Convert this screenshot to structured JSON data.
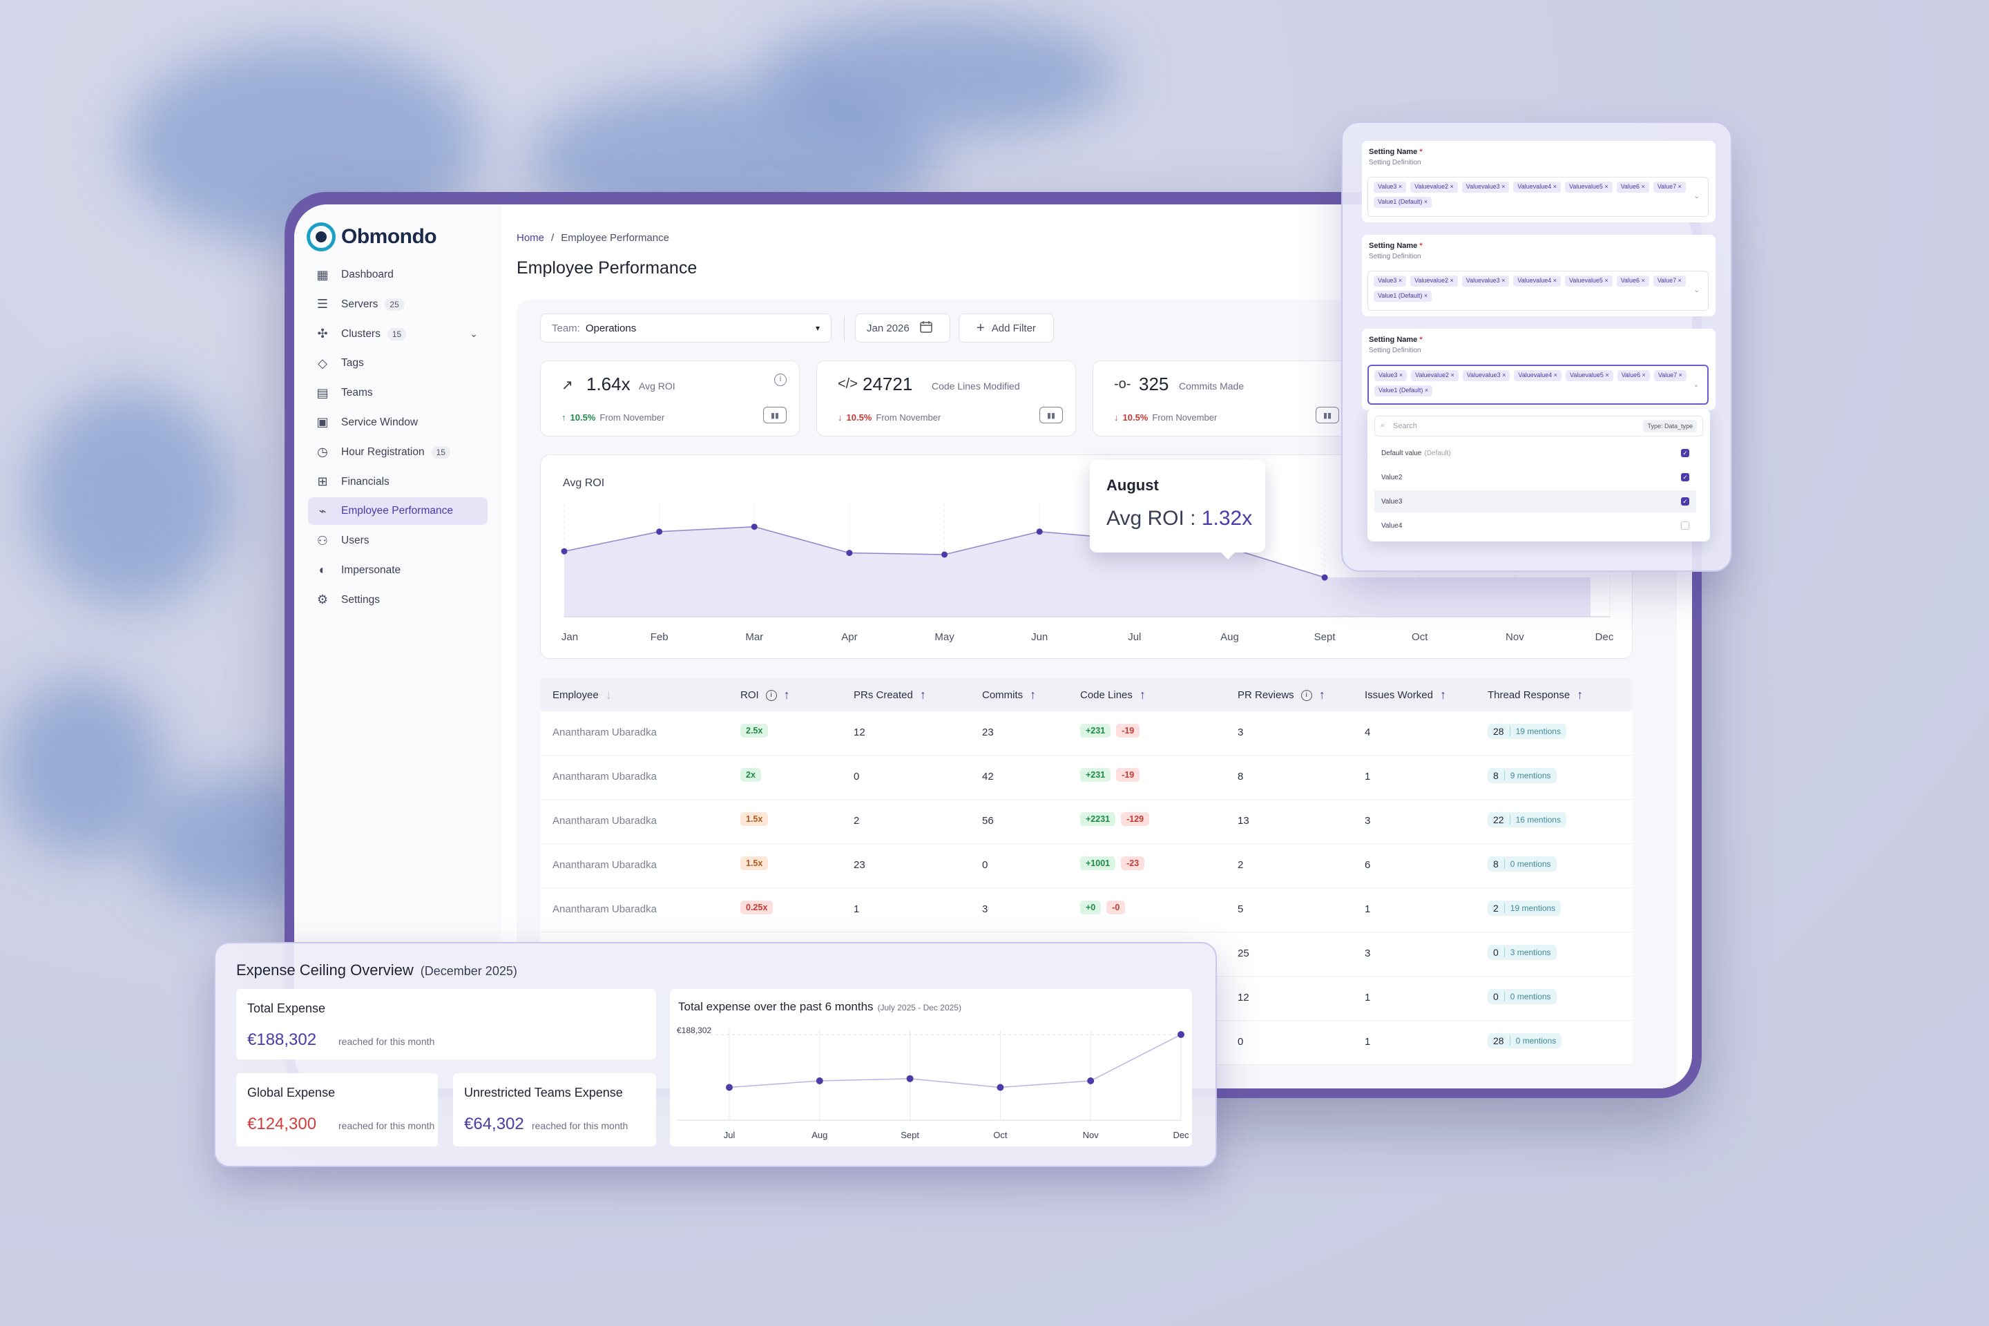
{
  "brand": "Obmondo",
  "sidebar": {
    "items": [
      {
        "label": "Dashboard",
        "icon": "dashboard-icon",
        "badge": ""
      },
      {
        "label": "Servers",
        "icon": "server-icon",
        "badge": "25"
      },
      {
        "label": "Clusters",
        "icon": "cluster-icon",
        "badge": "15"
      },
      {
        "label": "Tags",
        "icon": "tag-icon",
        "badge": ""
      },
      {
        "label": "Teams",
        "icon": "team-icon",
        "badge": ""
      },
      {
        "label": "Service Window",
        "icon": "calendar-icon",
        "badge": ""
      },
      {
        "label": "Hour Registration",
        "icon": "clock-icon",
        "badge": "15"
      },
      {
        "label": "Financials",
        "icon": "financials-icon",
        "badge": ""
      },
      {
        "label": "Employee Performance",
        "icon": "chart-line-icon",
        "badge": ""
      },
      {
        "label": "Users",
        "icon": "users-icon",
        "badge": ""
      },
      {
        "label": "Impersonate",
        "icon": "mask-icon",
        "badge": ""
      },
      {
        "label": "Settings",
        "icon": "gear-icon",
        "badge": ""
      }
    ],
    "active_index": 8
  },
  "breadcrumb": {
    "home": "Home",
    "sep": "/",
    "current": "Employee Performance"
  },
  "page_title": "Employee Performance",
  "filters": {
    "team_label": "Team:",
    "team_value": "Operations",
    "date": "Jan 2026",
    "add_filter": "Add Filter"
  },
  "kpis": [
    {
      "value": "1.64x",
      "caption": "Avg ROI",
      "change": "10.5%",
      "direction": "up",
      "since": "From November"
    },
    {
      "value": "24721",
      "caption": "Code Lines Modified",
      "change": "10.5%",
      "direction": "down",
      "since": "From November"
    },
    {
      "value": "325",
      "caption": "Commits Made",
      "change": "10.5%",
      "direction": "down",
      "since": "From November"
    }
  ],
  "chart_data": {
    "type": "area",
    "title": "Avg ROI",
    "categories": [
      "Jan",
      "Feb",
      "Mar",
      "Apr",
      "May",
      "Jun",
      "Jul",
      "Aug",
      "Sept",
      "Oct",
      "Nov",
      "Dec"
    ],
    "values": [
      1.3,
      1.42,
      1.45,
      1.29,
      1.28,
      1.42,
      null,
      1.32,
      1.14,
      null,
      null,
      null
    ],
    "colors": {
      "line": "#8f86c9",
      "fill": "#e9e6f7",
      "point": "#4b3aa7"
    }
  },
  "tooltip": {
    "month": "August",
    "label": "Avg ROI :",
    "value": "1.32x"
  },
  "table": {
    "headers": [
      "Employee",
      "ROI",
      "PRs Created",
      "Commits",
      "Code Lines",
      "PR Reviews",
      "Issues Worked",
      "Thread Response"
    ],
    "rows": [
      {
        "employee": "Anantharam Ubaradka",
        "roi": "2.5x",
        "roi_tone": "green",
        "prs": "12",
        "commits": "23",
        "add": "+231",
        "del": "-19",
        "reviews": "3",
        "issues": "4",
        "thread": "28",
        "mentions": "19 mentions"
      },
      {
        "employee": "Anantharam Ubaradka",
        "roi": "2x",
        "roi_tone": "green",
        "prs": "0",
        "commits": "42",
        "add": "+231",
        "del": "-19",
        "reviews": "8",
        "issues": "1",
        "thread": "8",
        "mentions": "9 mentions"
      },
      {
        "employee": "Anantharam Ubaradka",
        "roi": "1.5x",
        "roi_tone": "orange",
        "prs": "2",
        "commits": "56",
        "add": "+2231",
        "del": "-129",
        "reviews": "13",
        "issues": "3",
        "thread": "22",
        "mentions": "16 mentions"
      },
      {
        "employee": "Anantharam Ubaradka",
        "roi": "1.5x",
        "roi_tone": "orange",
        "prs": "23",
        "commits": "0",
        "add": "+1001",
        "del": "-23",
        "reviews": "2",
        "issues": "6",
        "thread": "8",
        "mentions": "0 mentions"
      },
      {
        "employee": "Anantharam Ubaradka",
        "roi": "0.25x",
        "roi_tone": "red",
        "prs": "1",
        "commits": "3",
        "add": "+0",
        "del": "-0",
        "reviews": "5",
        "issues": "1",
        "thread": "2",
        "mentions": "19 mentions"
      },
      {
        "employee": "",
        "roi": "",
        "roi_tone": "",
        "prs": "",
        "commits": "",
        "add": "",
        "del": "",
        "reviews": "25",
        "issues": "3",
        "thread": "0",
        "mentions": "3 mentions"
      },
      {
        "employee": "",
        "roi": "",
        "roi_tone": "",
        "prs": "",
        "commits": "",
        "add": "",
        "del": "",
        "reviews": "12",
        "issues": "1",
        "thread": "0",
        "mentions": "0 mentions"
      },
      {
        "employee": "",
        "roi": "",
        "roi_tone": "",
        "prs": "",
        "commits": "",
        "add": "",
        "del": "",
        "reviews": "0",
        "issues": "1",
        "thread": "28",
        "mentions": "0 mentions"
      }
    ]
  },
  "settings_panel": {
    "cards": [
      {
        "name": "Setting Name",
        "definition": "Setting Definition"
      },
      {
        "name": "Setting Name",
        "definition": "Setting Definition"
      },
      {
        "name": "Setting Name",
        "definition": "Setting Definition"
      }
    ],
    "tags": [
      "Value3",
      "Valuevalue2",
      "Valuevalue3",
      "Valuevalue4",
      "Valuevalue5",
      "Value6",
      "Value7",
      "Value1 (Default)"
    ],
    "search_placeholder": "Search",
    "type_chip": "Type: Data_type",
    "options": [
      {
        "label": "Default value",
        "hint": "(Default)",
        "checked": true
      },
      {
        "label": "Value2",
        "hint": "",
        "checked": true
      },
      {
        "label": "Value3",
        "hint": "",
        "checked": true
      },
      {
        "label": "Value4",
        "hint": "",
        "checked": false
      }
    ]
  },
  "expense": {
    "title": "Expense Ceiling Overview",
    "period": "(December 2025)",
    "total": {
      "label": "Total Expense",
      "value": "€188,302",
      "sub": "reached for this month"
    },
    "global": {
      "label": "Global Expense",
      "value": "€124,300",
      "sub": "reached for this month"
    },
    "unrestricted": {
      "label": "Unrestricted Teams Expense",
      "value": "€64,302",
      "sub": "reached for this month"
    },
    "chart_title": "Total expense over the past 6 months",
    "chart_range": "(July 2025 - Dec 2025)",
    "chart_data": {
      "type": "line",
      "categories": [
        "Jul",
        "Aug",
        "Sept",
        "Oct",
        "Nov",
        "Dec"
      ],
      "values": [
        140000,
        146000,
        148000,
        140000,
        146000,
        188302
      ],
      "ylabel_tick": "€188,302",
      "colors": {
        "line": "#b9b4e3",
        "point": "#4b3aa7"
      }
    }
  }
}
